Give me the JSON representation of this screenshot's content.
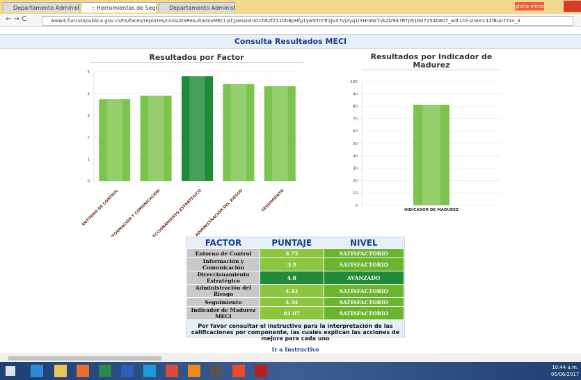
{
  "browser": {
    "tabs": [
      "Departamento Administr",
      ":: Herramientas de Segu",
      "Departamento Administr"
    ],
    "url": "www3.funcionpublica.gov.co/hs/faces/reportes/consultaResultadosMECI.jsf;jsessionid=hKzfZ11bh8pHfp1ywSTmTr2JvX7vj2yq1lXHmNrTvk2lz947RTpS16072540807_adf.ctrl-state=12f8uo77xv_3",
    "user": "gloria elena"
  },
  "header": {
    "title": "Consulta Resultados MECI"
  },
  "chart_data": [
    {
      "type": "bar",
      "title": "Resultados por Factor",
      "categories": [
        "ENTORNO DE CONTROL",
        "INFORMACIÓN Y COMUNICACIÓN",
        "DIRECCIONAMIENTO ESTRATÉGICO",
        "ADMINISTRACIÓN DEL RIESGO",
        "SEGUIMIENTO"
      ],
      "values": [
        3.75,
        3.9,
        4.8,
        4.43,
        4.34
      ],
      "colors": [
        "#7dc44e",
        "#7dc44e",
        "#1f8a37",
        "#7dc44e",
        "#7dc44e"
      ],
      "ylim": [
        0,
        5
      ],
      "yticks": [
        0,
        1,
        2,
        3,
        4,
        5
      ],
      "grid": true
    },
    {
      "type": "bar",
      "title": "Resultados por Indicador de Madurez",
      "categories": [
        "INDICADOR DE MADUREZ"
      ],
      "values": [
        81.07
      ],
      "colors": [
        "#7dc44e"
      ],
      "ylim": [
        0,
        100
      ],
      "yticks": [
        0,
        10,
        20,
        30,
        40,
        50,
        60,
        70,
        80,
        90,
        100
      ],
      "grid": true
    }
  ],
  "table": {
    "headers": [
      "FACTOR",
      "PUNTAJE",
      "NIVEL"
    ],
    "rows": [
      [
        "Entorno de Control",
        3.75,
        "SATISFACTORIO"
      ],
      [
        "Información y Comunicación",
        3.9,
        "SATISFACTORIO"
      ],
      [
        "Direccionamiento Estratégico",
        4.8,
        "AVANZADO"
      ],
      [
        "Administración del Riesgo",
        4.43,
        "SATISFACTORIO"
      ],
      [
        "Seguimiento",
        4.34,
        "SATISFACTORIO"
      ],
      [
        "Indicador de Madurez MECI",
        81.07,
        "SATISFACTORIO"
      ]
    ],
    "level_colors": [
      "#6ab42e",
      "#6ab42e",
      "#1f8a37",
      "#6ab42e",
      "#6ab42e",
      "#6ab42e"
    ],
    "note": "Por favor consultar el instructivo para la interpretación de las calificaciones por componente, las cuales explican las acciones de mejora para cada uno",
    "link": "Ir a Instructivo"
  },
  "taskbar": {
    "time": "10:44 a.m.",
    "date": "05/06/2017"
  }
}
